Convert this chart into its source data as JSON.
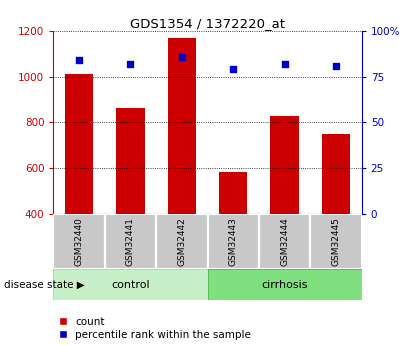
{
  "title": "GDS1354 / 1372220_at",
  "samples": [
    "GSM32440",
    "GSM32441",
    "GSM32442",
    "GSM32443",
    "GSM32444",
    "GSM32445"
  ],
  "counts": [
    1010,
    865,
    1170,
    585,
    830,
    748
  ],
  "percentile_ranks": [
    84,
    82,
    86,
    79,
    82,
    81
  ],
  "ylim_left": [
    400,
    1200
  ],
  "ylim_right": [
    0,
    100
  ],
  "yticks_left": [
    400,
    600,
    800,
    1000,
    1200
  ],
  "yticks_right": [
    0,
    25,
    50,
    75,
    100
  ],
  "bar_color": "#cc0000",
  "scatter_color": "#0000cc",
  "control_count": 3,
  "cirrhosis_count": 3,
  "control_label": "control",
  "cirrhosis_label": "cirrhosis",
  "disease_state_label": "disease state",
  "legend_count": "count",
  "legend_percentile": "percentile rank within the sample",
  "tick_label_color_left": "#cc0000",
  "tick_label_color_right": "#0000cc",
  "grid_color": "black",
  "bar_bottom": 400,
  "control_color": "#c8f0c8",
  "cirrhosis_color": "#80e080",
  "sample_box_color": "#c8c8c8"
}
